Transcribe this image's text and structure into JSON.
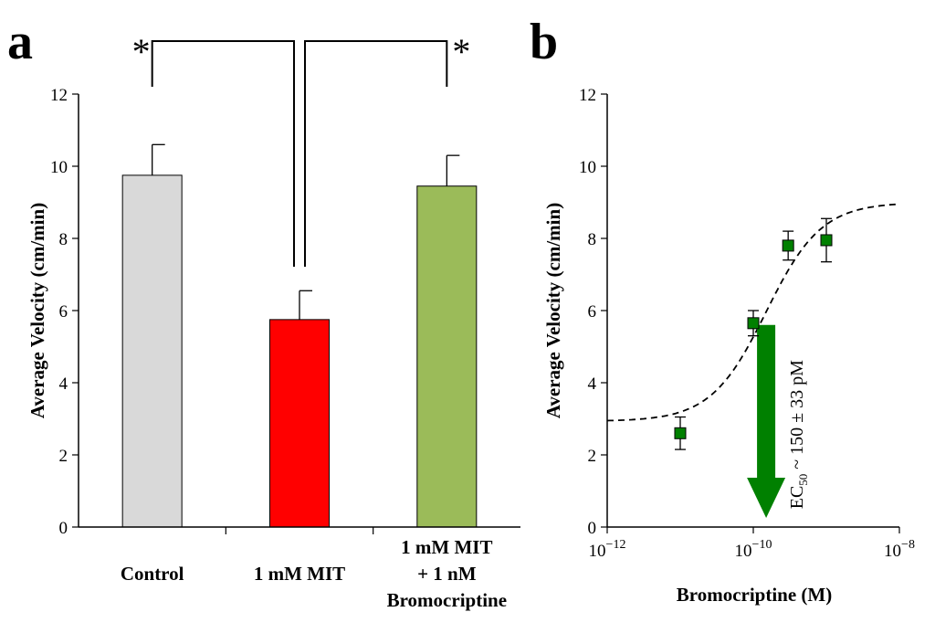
{
  "chart_data": [
    {
      "panel": "a",
      "type": "bar",
      "ylabel": "Average Velocity (cm/min)",
      "ylim": [
        0,
        12
      ],
      "yticks": [
        "0",
        "2",
        "4",
        "6",
        "8",
        "10",
        "12"
      ],
      "categories": [
        [
          "Control"
        ],
        [
          "1 mM MIT"
        ],
        [
          "1 mM MIT",
          "+ 1 nM",
          "Bromocriptine"
        ]
      ],
      "values": [
        9.75,
        5.75,
        9.45
      ],
      "errors": [
        0.85,
        0.8,
        0.85
      ],
      "colors": [
        "#d9d9d9",
        "#ff0000",
        "#9bbb59"
      ],
      "significance": [
        {
          "from": 0,
          "to": 1,
          "label": "*"
        },
        {
          "from": 2,
          "to": 1,
          "label": "*"
        }
      ],
      "grid": false
    },
    {
      "panel": "b",
      "type": "scatter",
      "xlabel": "Bromocriptine (M)",
      "ylabel": "Average Velocity (cm/min)",
      "xscale": "log",
      "xlim": [
        1e-12,
        1e-08
      ],
      "ylim": [
        0,
        12
      ],
      "yticks": [
        "0",
        "2",
        "4",
        "6",
        "8",
        "10",
        "12"
      ],
      "xticks": [
        {
          "base": "10",
          "exp": "−12",
          "value": 1e-12
        },
        {
          "base": "10",
          "exp": "−10",
          "value": 1e-10
        },
        {
          "base": "10",
          "exp": "−8",
          "value": 1e-08
        }
      ],
      "points": [
        {
          "x": 1e-11,
          "y": 2.6,
          "err": 0.45
        },
        {
          "x": 1e-10,
          "y": 5.65,
          "err": 0.35
        },
        {
          "x": 3e-10,
          "y": 7.8,
          "err": 0.4
        },
        {
          "x": 1e-09,
          "y": 7.95,
          "err": 0.6
        }
      ],
      "marker_color": "#008000",
      "fit": {
        "style": "dashed",
        "bottom": 2.93,
        "top": 9.0,
        "ec50": 1.5e-10,
        "hill": 1.15
      },
      "annotation": {
        "prefix": "EC",
        "sub": "50",
        "suffix": " ~ 150 ± 33 pM",
        "arrow_color": "#008000",
        "arrow_x": 1.5e-10,
        "arrow_from_y": 5.6,
        "arrow_to_y": 0
      }
    }
  ]
}
